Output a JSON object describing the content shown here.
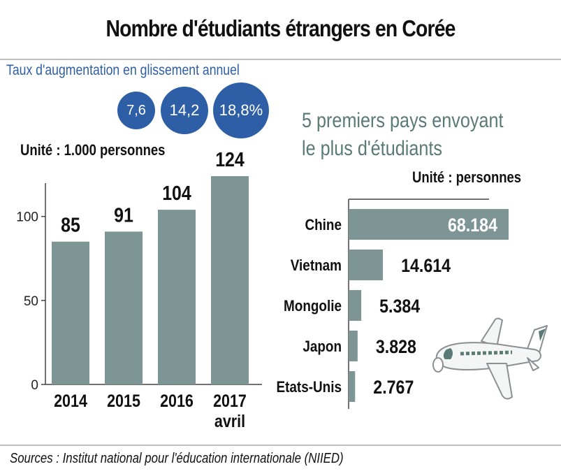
{
  "title": "Nombre d'étudiants étrangers en Corée",
  "growth": {
    "label": "Taux d'augmentation en glissement annuel",
    "values": [
      "7,6",
      "14,2",
      "18,8%"
    ]
  },
  "left_unit": "Unité : 1.000 personnes",
  "right_title_line1": "5 premiers pays envoyant",
  "right_title_line2": "le plus d'étudiants",
  "right_unit": "Unité : personnes",
  "source": "Sources : Institut national pour l'éducation internationale (NIIED)",
  "colors": {
    "bar": "#7d9594",
    "accent_blue": "#2e5fa6",
    "subtitle": "#5a7a76"
  },
  "icons": [
    "airplane-icon"
  ],
  "chart_data": [
    {
      "type": "bar",
      "categories": [
        "2014",
        "2015",
        "2016",
        "2017"
      ],
      "category_sublabels": [
        "",
        "",
        "",
        "avril"
      ],
      "values": [
        85,
        91,
        104,
        124
      ],
      "value_labels": [
        "85",
        "91",
        "104",
        "124"
      ],
      "yticks": [
        0,
        50,
        100
      ],
      "ytick_labels": [
        "0",
        "50",
        "100"
      ],
      "ylim": [
        0,
        124
      ]
    },
    {
      "type": "bar",
      "orientation": "horizontal",
      "categories": [
        "Chine",
        "Vietnam",
        "Mongolie",
        "Japon",
        "Etats-Unis"
      ],
      "values": [
        68184,
        14614,
        5384,
        3828,
        2767
      ],
      "value_labels": [
        "68.184",
        "14.614",
        "5.384",
        "3.828",
        "2.767"
      ],
      "xlim": [
        0,
        68184
      ]
    }
  ]
}
